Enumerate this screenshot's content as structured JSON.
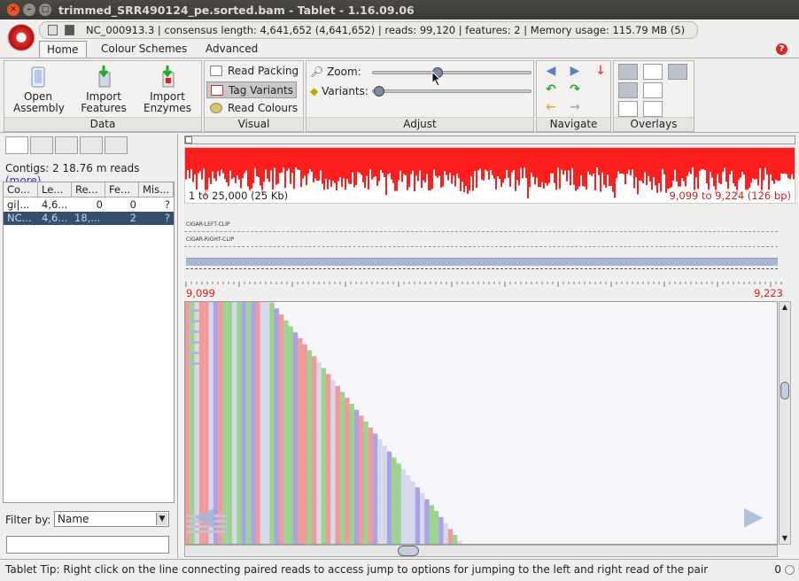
{
  "window": {
    "title": "trimmed_SRR490124_pe.sorted.bam - Tablet - 1.16.09.06"
  },
  "info_bar": {
    "text": "NC_000913.3  |  consensus length: 4,641,652 (4,641,652)  |  reads: 99,120  |  features: 2  |  Memory usage: 115.79 MB (5)"
  },
  "tabs": [
    {
      "label": "Home"
    },
    {
      "label": "Colour Schemes"
    },
    {
      "label": "Advanced"
    }
  ],
  "ribbon": {
    "data_group": {
      "caption": "Data",
      "open_label": "Open\nAssembly",
      "import_features_label": "Import\nFeatures",
      "import_enzymes_label": "Import\nEnzymes"
    },
    "visual_group": {
      "caption": "Visual",
      "read_packing": "Read Packing",
      "tag_variants": "Tag Variants",
      "read_colours": "Read Colours"
    },
    "adjust_group": {
      "caption": "Adjust",
      "zoom_label": "Zoom:",
      "variants_label": "Variants:",
      "zoom_value": 0.41,
      "variants_value": 0.0
    },
    "navigate_group": {
      "caption": "Navigate"
    },
    "overlays_group": {
      "caption": "Overlays"
    }
  },
  "sidebar": {
    "contigs_text": "Contigs: 2  18.76 m reads",
    "more_label": "(more)",
    "columns": [
      "Co...",
      "Le...",
      "Re...",
      "Fe...",
      "Mis..."
    ],
    "rows": [
      [
        "gi|...",
        "4,6...",
        "0",
        "0",
        "?"
      ],
      [
        "NC...",
        "4,6...",
        "18,...",
        "2",
        "?"
      ]
    ],
    "filter_label": "Filter by:",
    "filter_value": "Name",
    "filter_text": ""
  },
  "main": {
    "coverage_left": "1 to 25,000 (25 Kb)",
    "coverage_right": "9,099 to 9,224 (126 bp)",
    "feature_track_1": "CIGAR-LEFT-CLIP",
    "feature_track_2": "CIGAR-RIGHT-CLIP",
    "ruler_start": "9,099",
    "ruler_end": "9,223"
  },
  "status": {
    "tip": "Tablet Tip: Right click on the line connecting paired reads to access jump to options for jumping to the left and right read of the pair",
    "count": "0"
  },
  "colors": {
    "coverage": "#ff1e1e",
    "base_A": "#9ad48f",
    "base_C": "#a9a3e6",
    "base_G": "#f19a9a",
    "base_T": "#d8d8ec"
  }
}
